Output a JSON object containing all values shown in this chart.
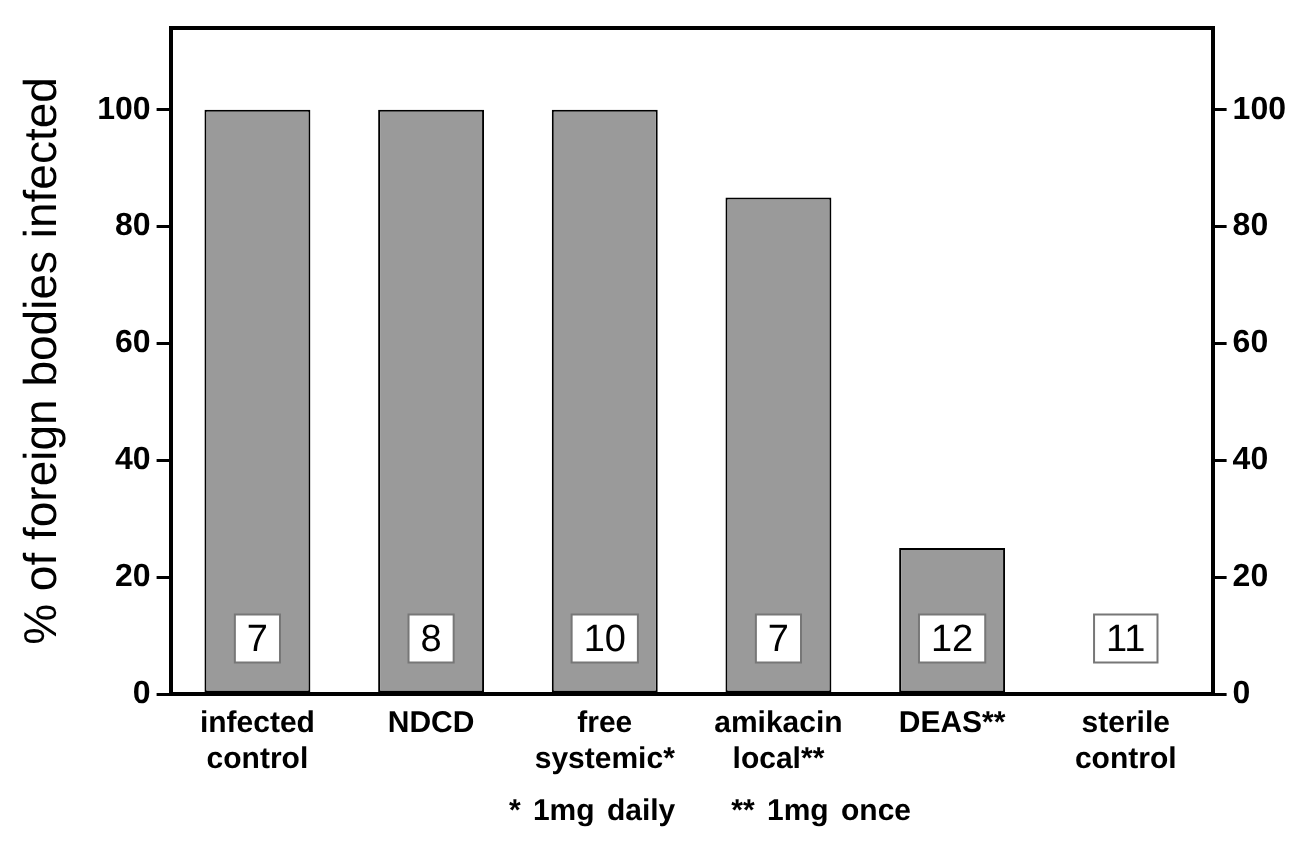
{
  "chart_data": {
    "type": "bar",
    "ylabel": "% of foreign bodies infected",
    "categories": [
      "infected control",
      "NDCD",
      "free systemic*",
      "amikacin local**",
      "DEAS**",
      "sterile control"
    ],
    "values": [
      100,
      100,
      100,
      85,
      25,
      0
    ],
    "color": "#9a9a9a",
    "ylim": [
      0,
      114
    ],
    "yticks": [
      0,
      20,
      40,
      60,
      80,
      100
    ],
    "y2lim": [
      0,
      114
    ],
    "y2ticks": [
      0,
      20,
      40,
      60,
      80,
      100
    ],
    "grid": false,
    "legend": false,
    "annotations": [
      {
        "text": "7",
        "x": "infected control",
        "y": 9.5
      },
      {
        "text": "8",
        "x": "NDCD",
        "y": 9.5
      },
      {
        "text": "10",
        "x": "free systemic*",
        "y": 9.5
      },
      {
        "text": "7",
        "x": "amikacin local**",
        "y": 9.5
      },
      {
        "text": "12",
        "x": "DEAS**",
        "y": 9.5
      },
      {
        "text": "11",
        "x": "sterile control",
        "y": 9.5
      },
      "* 1mg daily",
      "** 1mg once"
    ]
  }
}
